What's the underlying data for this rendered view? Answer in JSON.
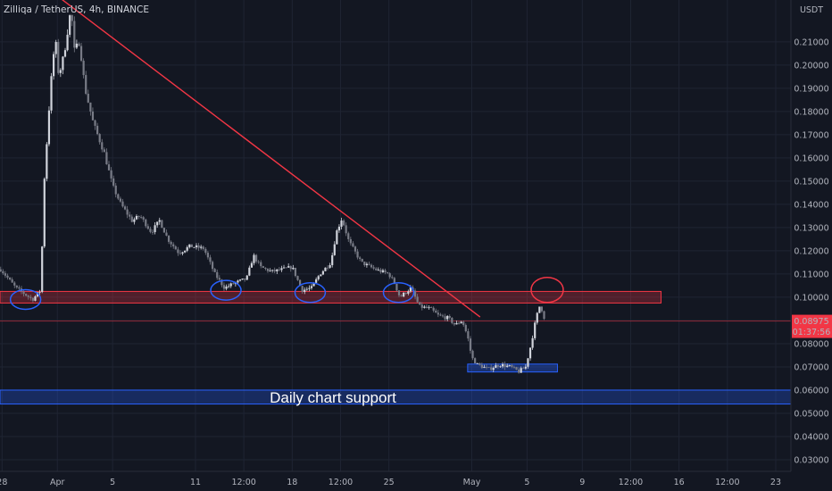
{
  "header": {
    "title": "Zilliqa / TetherUS, 4h, BINANCE"
  },
  "colors": {
    "background": "#131722",
    "up": "#d1d4dc",
    "down": "#787b86",
    "trendline": "#f23645",
    "resistance_zone": "#f23645",
    "support_zone": "#2962ff",
    "circle_blue": "#2962ff",
    "circle_red": "#f23645",
    "price_badge": "#f23645",
    "last_price_line": "#f23645"
  },
  "chart_data": {
    "type": "candlestick",
    "title": "Zilliqa / TetherUS, 4h, BINANCE",
    "currency_label": "USDT",
    "yscale": "linear",
    "ylim": [
      0.025,
      0.228
    ],
    "yticks": [
      0.03,
      0.04,
      0.05,
      0.06,
      0.07,
      0.08,
      0.09,
      0.1,
      0.11,
      0.12,
      0.13,
      0.14,
      0.15,
      0.16,
      0.17,
      0.18,
      0.19,
      0.2,
      0.21
    ],
    "ytick_labels": [
      "0.03000",
      "0.04000",
      "0.05000",
      "0.06000",
      "0.07000",
      "0.08000",
      "0.09000",
      "0.10000",
      "0.11000",
      "0.12000",
      "0.13000",
      "0.14000",
      "0.15000",
      "0.16000",
      "0.17000",
      "0.18000",
      "0.19000",
      "0.20000",
      "0.21000"
    ],
    "xlim_days": [
      -4.15,
      53.1
    ],
    "xaxis_labels": [
      {
        "label": "28",
        "day": -4
      },
      {
        "label": "Apr",
        "day": 0
      },
      {
        "label": "5",
        "day": 4
      },
      {
        "label": "11",
        "day": 10
      },
      {
        "label": "12:00",
        "day": 13.5
      },
      {
        "label": "18",
        "day": 17
      },
      {
        "label": "12:00",
        "day": 20.5
      },
      {
        "label": "25",
        "day": 24
      },
      {
        "label": "May",
        "day": 30
      },
      {
        "label": "5",
        "day": 34
      },
      {
        "label": "9",
        "day": 38
      },
      {
        "label": "12:00",
        "day": 41.5
      },
      {
        "label": "16",
        "day": 45
      },
      {
        "label": "12:00",
        "day": 48.5
      },
      {
        "label": "23",
        "day": 52
      }
    ],
    "price_path": [
      [
        -4.1,
        0.112
      ],
      [
        -3.0,
        0.104
      ],
      [
        -1.8,
        0.099
      ],
      [
        -1.2,
        0.103
      ],
      [
        -0.95,
        0.15
      ],
      [
        -0.5,
        0.19
      ],
      [
        -0.15,
        0.212
      ],
      [
        0.1,
        0.195
      ],
      [
        0.5,
        0.205
      ],
      [
        1.0,
        0.225
      ],
      [
        1.2,
        0.206
      ],
      [
        1.6,
        0.21
      ],
      [
        2.0,
        0.19
      ],
      [
        2.6,
        0.175
      ],
      [
        3.4,
        0.162
      ],
      [
        4.0,
        0.148
      ],
      [
        4.6,
        0.14
      ],
      [
        5.4,
        0.133
      ],
      [
        6.0,
        0.135
      ],
      [
        6.8,
        0.128
      ],
      [
        7.4,
        0.133
      ],
      [
        8.0,
        0.125
      ],
      [
        8.8,
        0.119
      ],
      [
        9.6,
        0.122
      ],
      [
        10.6,
        0.121
      ],
      [
        11.4,
        0.11
      ],
      [
        12.1,
        0.104
      ],
      [
        12.8,
        0.106
      ],
      [
        13.7,
        0.108
      ],
      [
        14.2,
        0.118
      ],
      [
        14.7,
        0.113
      ],
      [
        15.5,
        0.111
      ],
      [
        16.3,
        0.112
      ],
      [
        17.0,
        0.113
      ],
      [
        17.7,
        0.103
      ],
      [
        18.4,
        0.104
      ],
      [
        19.0,
        0.11
      ],
      [
        19.8,
        0.115
      ],
      [
        20.2,
        0.128
      ],
      [
        20.6,
        0.134
      ],
      [
        21.1,
        0.124
      ],
      [
        22.0,
        0.115
      ],
      [
        23.0,
        0.112
      ],
      [
        24.0,
        0.11
      ],
      [
        24.4,
        0.106
      ],
      [
        24.8,
        0.1
      ],
      [
        25.6,
        0.104
      ],
      [
        26.2,
        0.096
      ],
      [
        27.0,
        0.095
      ],
      [
        27.6,
        0.092
      ],
      [
        28.3,
        0.091
      ],
      [
        28.8,
        0.088
      ],
      [
        29.3,
        0.09
      ],
      [
        29.7,
        0.083
      ],
      [
        30.0,
        0.074
      ],
      [
        30.4,
        0.071
      ],
      [
        31.2,
        0.069
      ],
      [
        32.0,
        0.071
      ],
      [
        32.8,
        0.07
      ],
      [
        33.4,
        0.068
      ],
      [
        33.9,
        0.07
      ],
      [
        34.3,
        0.08
      ],
      [
        34.65,
        0.091
      ],
      [
        34.95,
        0.097
      ],
      [
        35.3,
        0.09
      ]
    ],
    "last_price": 0.08975,
    "last_price_label": "0.08975",
    "countdown_label": "01:37:56",
    "annotations": {
      "trendline": {
        "from": [
          -0.5,
          0.232
        ],
        "to": [
          30.6,
          0.0915
        ]
      },
      "resistance_zone": {
        "x": [
          -4.15,
          43.7
        ],
        "y": [
          0.0975,
          0.1025
        ]
      },
      "support_zone_daily": {
        "x": [
          -4.15,
          53.1
        ],
        "y": [
          0.054,
          0.06
        ]
      },
      "support_zone_local": {
        "x": [
          29.7,
          36.2
        ],
        "y": [
          0.0678,
          0.0712
        ]
      },
      "daily_support_label": "Daily chart support",
      "blue_circles": [
        [
          -2.3,
          0.099
        ],
        [
          12.2,
          0.103
        ],
        [
          18.3,
          0.102
        ],
        [
          24.7,
          0.102
        ]
      ],
      "red_circle": [
        35.2,
        0.102
      ]
    }
  }
}
